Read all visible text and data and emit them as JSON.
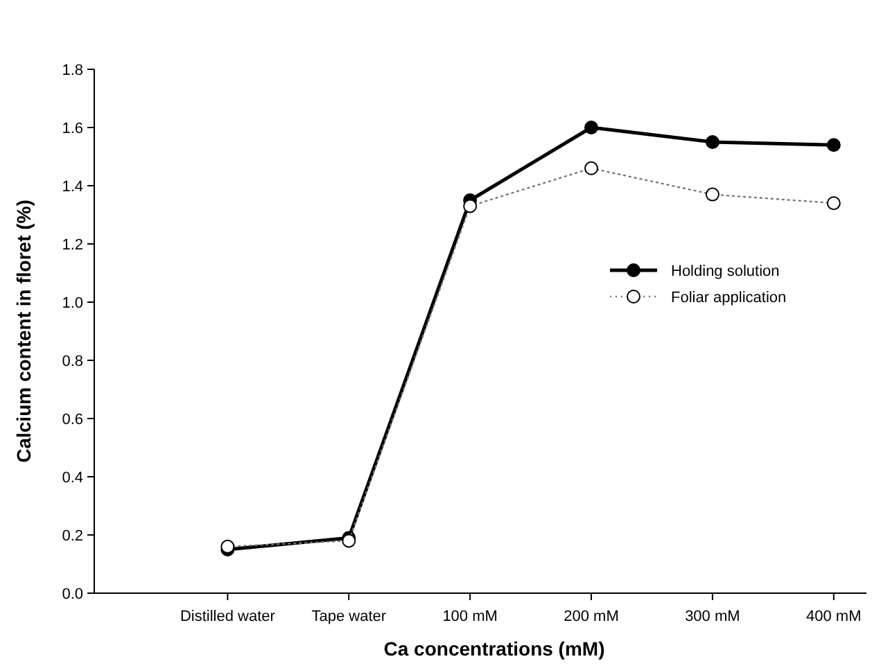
{
  "chart_data": {
    "type": "line",
    "xlabel": "Ca concentrations (mM)",
    "ylabel": "Calcium content in floret (%)",
    "categories": [
      "Distilled water",
      "Tape water",
      "100 mM",
      "200 mM",
      "300 mM",
      "400 mM"
    ],
    "series": [
      {
        "name": "Holding solution",
        "color": "#000000",
        "values": [
          0.15,
          0.19,
          1.35,
          1.6,
          1.55,
          1.54
        ],
        "line_style": "solid",
        "marker": "circle"
      },
      {
        "name": "Foliar application",
        "color": "#000000",
        "values": [
          0.16,
          0.18,
          1.33,
          1.46,
          1.37,
          1.34
        ],
        "line_style": "dotted",
        "marker": "circle"
      }
    ],
    "ylim": [
      0,
      1.8
    ],
    "yticks": [
      {
        "value": 0,
        "label": "0.0"
      },
      {
        "value": 0.2,
        "label": "0.2"
      },
      {
        "value": 0.4,
        "label": "0.4"
      },
      {
        "value": 0.6,
        "label": "0.6"
      },
      {
        "value": 0.8,
        "label": "0.8"
      },
      {
        "value": 1,
        "label": "1.0"
      },
      {
        "value": 1.2,
        "label": "1.2"
      },
      {
        "value": 1.4,
        "label": "1.4"
      },
      {
        "value": 1.6,
        "label": "1.6"
      },
      {
        "value": 1.8,
        "label": "1.8"
      }
    ],
    "legend": "right",
    "grid": false
  }
}
